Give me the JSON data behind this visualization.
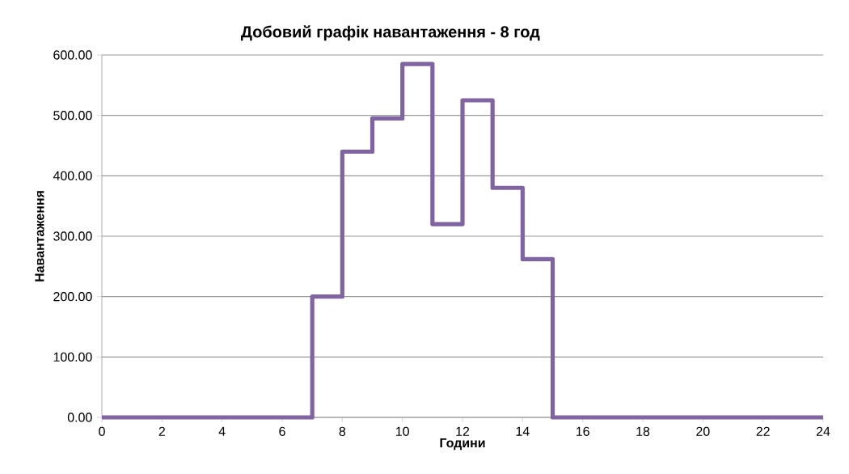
{
  "chart_data": {
    "type": "step",
    "title": "Добовий графік навантаження - 8 год",
    "xlabel": "Години",
    "ylabel": "Навантаження",
    "x": [
      0,
      7,
      8,
      9,
      10,
      11,
      12,
      13,
      14,
      15,
      24
    ],
    "series": [
      {
        "color": "#8064a2",
        "values": [
          0,
          200,
          440,
          495,
          585,
          320,
          525,
          380,
          262,
          0,
          0
        ]
      }
    ],
    "xlim": [
      0,
      24
    ],
    "xticks": [
      0,
      2,
      4,
      6,
      8,
      10,
      12,
      14,
      16,
      18,
      20,
      22,
      24
    ],
    "ylim": [
      0,
      600
    ],
    "yticks": [
      {
        "value": 0,
        "label": "0.00"
      },
      {
        "value": 100,
        "label": "100.00"
      },
      {
        "value": 200,
        "label": "200.00"
      },
      {
        "value": 300,
        "label": "300.00"
      },
      {
        "value": 400,
        "label": "400.00"
      },
      {
        "value": 500,
        "label": "500.00"
      },
      {
        "value": 600,
        "label": "600.00"
      }
    ],
    "grid": "y",
    "marker": "none",
    "line_style": "solid"
  }
}
